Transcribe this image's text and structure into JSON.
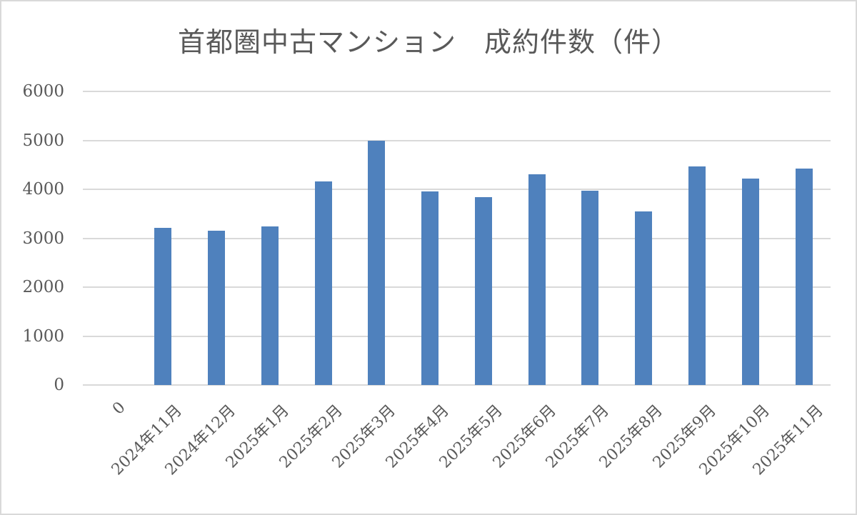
{
  "title": "首都圏中古マンション　成約件数（件）",
  "colors": {
    "bar": "#4f81bd",
    "grid": "#d9d9d9",
    "text": "#595959",
    "border": "#d9d9d9"
  },
  "axis": {
    "y_ticks": [
      "6000",
      "5000",
      "4000",
      "3000",
      "2000",
      "1000",
      "0"
    ]
  },
  "chart_data": {
    "type": "bar",
    "title": "首都圏中古マンション　成約件数（件）",
    "xlabel": "",
    "ylabel": "",
    "ylim": [
      0,
      6000
    ],
    "y_ticks": [
      0,
      1000,
      2000,
      3000,
      4000,
      5000,
      6000
    ],
    "grid": true,
    "legend": null,
    "categories": [
      "0",
      "2024年11月",
      "2024年12月",
      "2025年1月",
      "2025年2月",
      "2025年3月",
      "2025年4月",
      "2025年5月",
      "2025年6月",
      "2025年7月",
      "2025年8月",
      "2025年9月",
      "2025年10月",
      "2025年11月"
    ],
    "values": [
      0,
      3210,
      3160,
      3245,
      4160,
      4995,
      3950,
      3835,
      4300,
      3970,
      3550,
      4470,
      4215,
      4425
    ]
  }
}
